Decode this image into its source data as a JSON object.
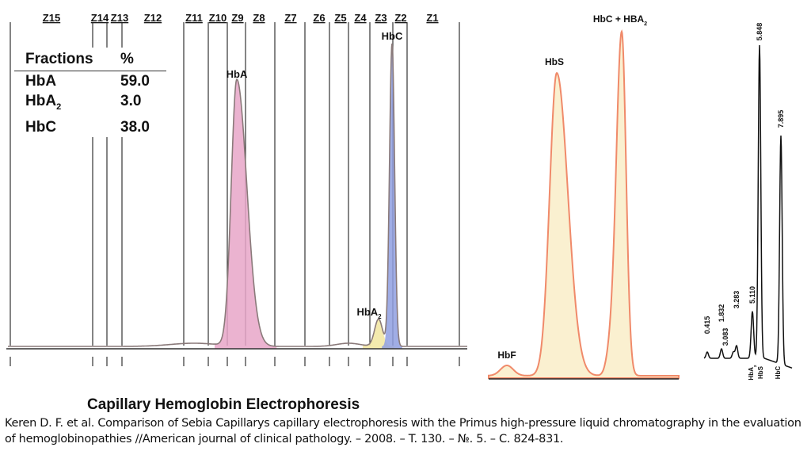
{
  "chart_data": [
    {
      "type": "line",
      "title": "Capillary Hemoglobin Electrophoresis",
      "zones": [
        "Z15",
        "Z14",
        "Z13",
        "Z12",
        "Z11",
        "Z10",
        "Z9",
        "Z8",
        "Z7",
        "Z6",
        "Z5",
        "Z4",
        "Z3",
        "Z2",
        "Z1"
      ],
      "table": {
        "headers": [
          "Fractions",
          "%"
        ],
        "rows": [
          {
            "fraction": "HbA",
            "sub": "",
            "value": "59.0"
          },
          {
            "fraction": "HbA",
            "sub": "2",
            "value": "3.0"
          },
          {
            "fraction": "HbC",
            "sub": "",
            "value": "38.0"
          }
        ]
      },
      "peaks": [
        {
          "label": "HbA",
          "zone": "Z9",
          "height": 0.88,
          "color": "#e8a6c8"
        },
        {
          "label": "HbA",
          "sub": "2",
          "zone": "Z3",
          "height": 0.09,
          "color": "#f2e6a0"
        },
        {
          "label": "HbC",
          "zone": "Z2",
          "height": 1.0,
          "color": "#8f9fe0"
        }
      ],
      "line_color": "#8a7a7a"
    },
    {
      "type": "line",
      "peaks": [
        {
          "label": "HbF",
          "height": 0.03
        },
        {
          "label": "HbS",
          "height": 0.88
        },
        {
          "label": "HbC + HBA",
          "sub": "2",
          "height": 1.0
        }
      ],
      "line_color": "#f08a6a",
      "fill_color": "#faf0d0"
    },
    {
      "type": "line",
      "retention_times": [
        "0.415",
        "1.832",
        "3.083",
        "3.283",
        "5.110",
        "5.848",
        "7.895"
      ],
      "peak_heights": [
        0.02,
        0.03,
        0.02,
        0.04,
        0.15,
        1.0,
        0.73
      ],
      "peak_labels": [
        {
          "label": "HbA",
          "sub": "2"
        },
        {
          "label": "HbS"
        },
        {
          "label": "HbC"
        }
      ],
      "line_color": "#111"
    }
  ],
  "caption": "Keren D. F. et al. Comparison of Sebia Capillarys capillary electrophoresis with the Primus high-pressure liquid chromatography in the evaluation of hemoglobinopathies //American journal of clinical pathology. – 2008. – T. 130. – №. 5. – C. 824-831."
}
